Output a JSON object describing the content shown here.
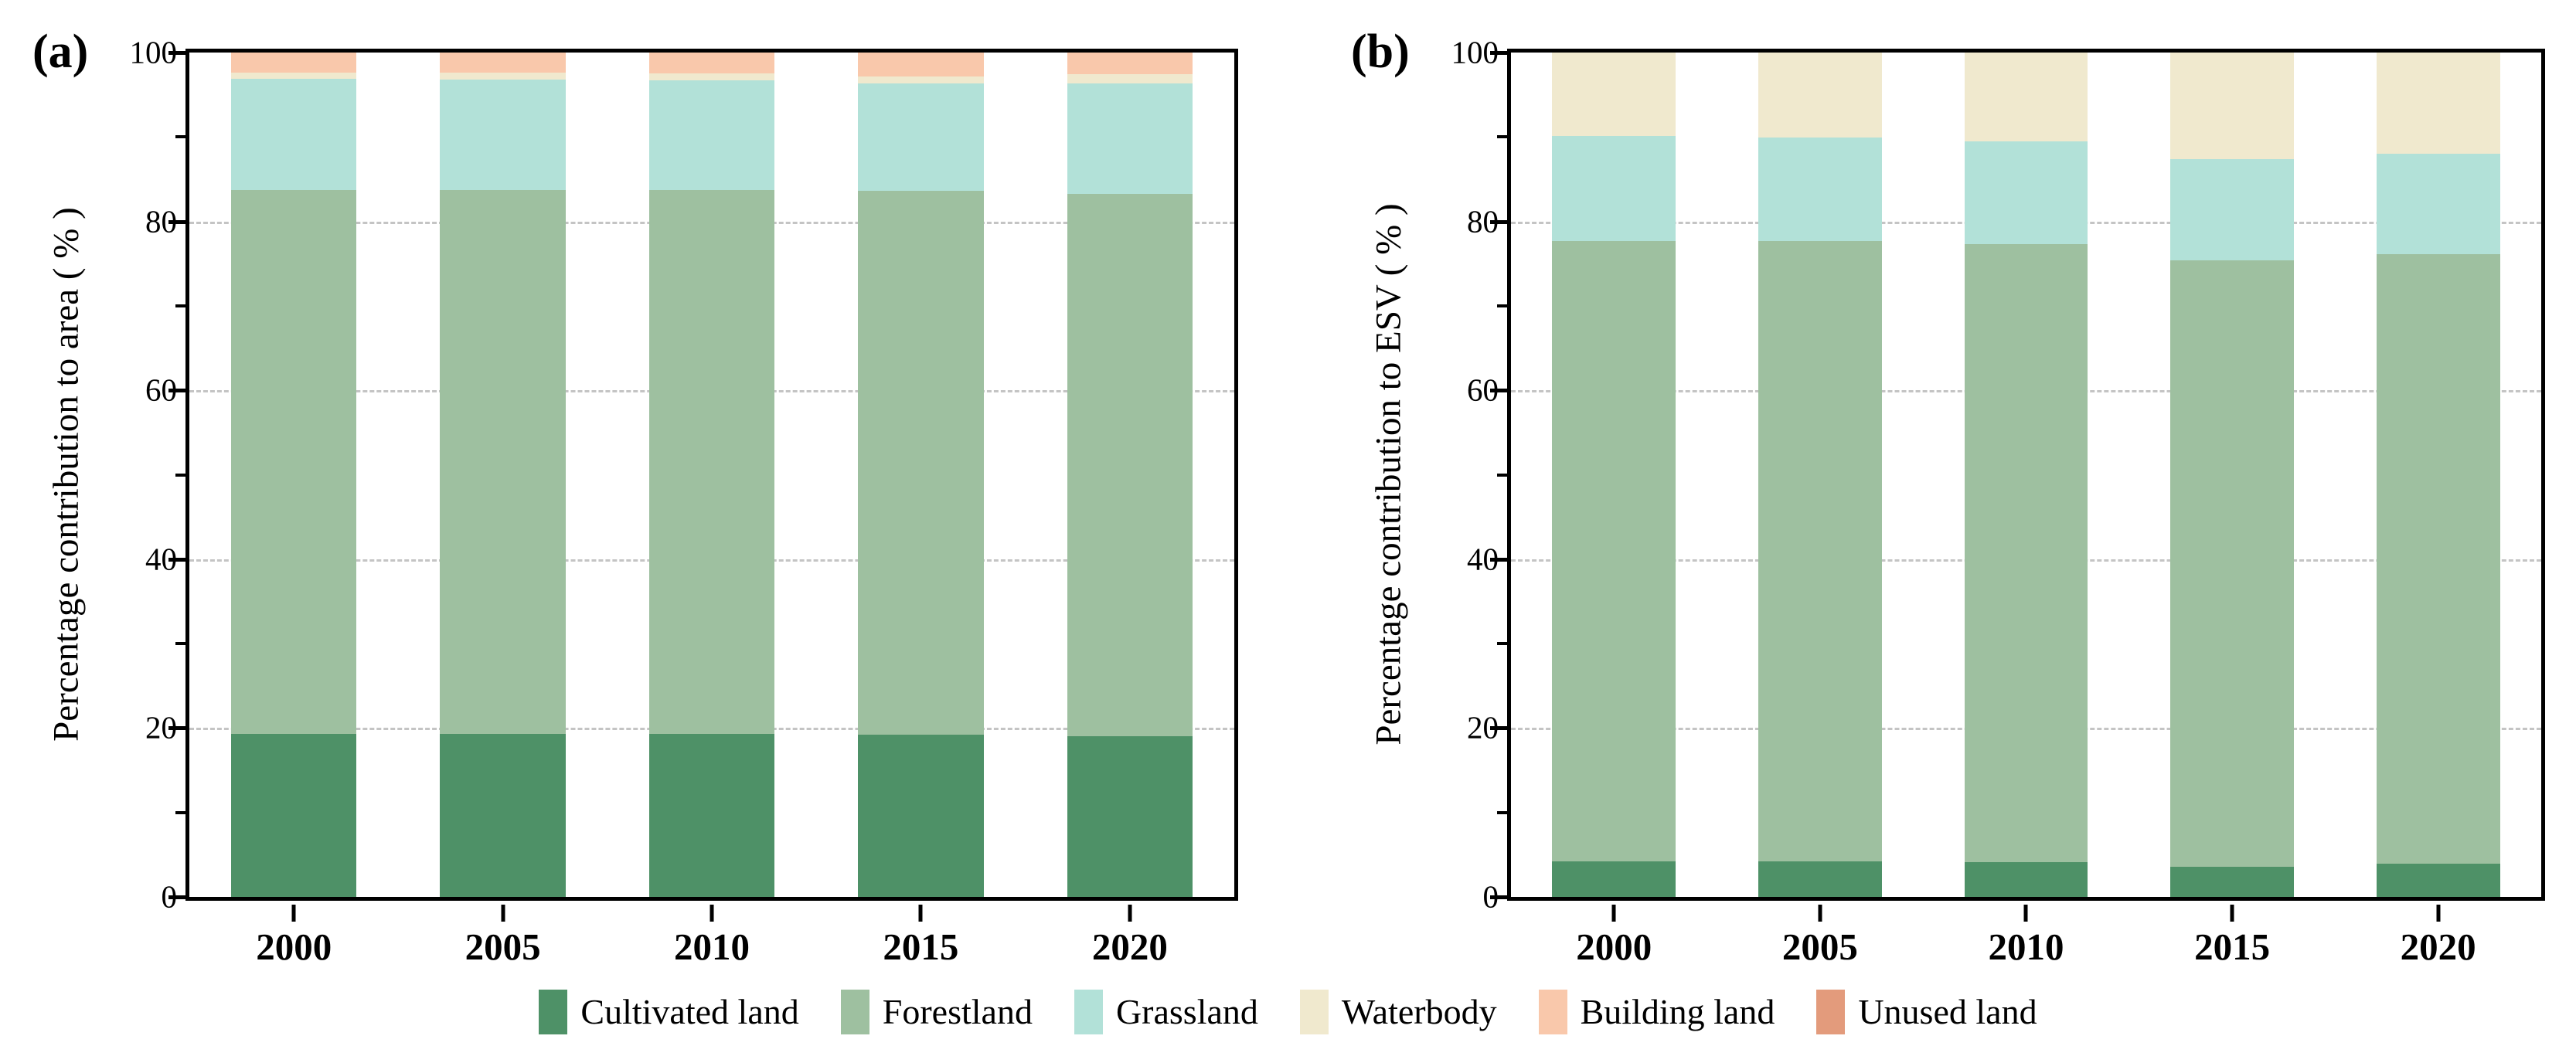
{
  "figure": {
    "background": "#ffffff"
  },
  "legend": {
    "position": "bottom-center",
    "items": [
      {
        "label": "Cultivated land",
        "color": "#4e9167"
      },
      {
        "label": "Forestland",
        "color": "#9ec0a0"
      },
      {
        "label": "Grassland",
        "color": "#b2e1d8"
      },
      {
        "label": "Waterbody",
        "color": "#f0e9ce"
      },
      {
        "label": "Building land",
        "color": "#f9c8ab"
      },
      {
        "label": "Unused land",
        "color": "#e39b7c"
      }
    ]
  },
  "chart_data": [
    {
      "type": "bar",
      "stacked": true,
      "panel_label": "(a)",
      "ylabel": "Percentage contribution to area ( % )",
      "xlabel": "",
      "categories": [
        "2000",
        "2005",
        "2010",
        "2015",
        "2020"
      ],
      "series": [
        {
          "name": "Cultivated land",
          "color": "#4e9167",
          "values": [
            19.3,
            19.3,
            19.3,
            19.2,
            19.0
          ]
        },
        {
          "name": "Forestland",
          "color": "#9ec0a0",
          "values": [
            64.4,
            64.4,
            64.4,
            64.4,
            64.3
          ]
        },
        {
          "name": "Grassland",
          "color": "#b2e1d8",
          "values": [
            13.2,
            13.1,
            13.0,
            12.7,
            13.0
          ]
        },
        {
          "name": "Waterbody",
          "color": "#f0e9ce",
          "values": [
            0.7,
            0.8,
            0.8,
            0.9,
            1.1
          ]
        },
        {
          "name": "Building land",
          "color": "#f9c8ab",
          "values": [
            2.4,
            2.4,
            2.5,
            2.8,
            2.6
          ]
        },
        {
          "name": "Unused land",
          "color": "#e39b7c",
          "values": [
            0.0,
            0.0,
            0.0,
            0.0,
            0.0
          ]
        }
      ],
      "ylim": [
        0,
        100
      ],
      "yticks": [
        0,
        20,
        40,
        60,
        80,
        100
      ],
      "minor_yticks": [
        10,
        30,
        50,
        70,
        90
      ],
      "grid": "horizontal dashed at major ticks, behind bars",
      "bar_width_fraction": 0.6
    },
    {
      "type": "bar",
      "stacked": true,
      "panel_label": "(b)",
      "ylabel": "Percentage contribution to ESV ( % )",
      "xlabel": "",
      "categories": [
        "2000",
        "2005",
        "2010",
        "2015",
        "2020"
      ],
      "series": [
        {
          "name": "Cultivated land",
          "color": "#4e9167",
          "values": [
            4.2,
            4.2,
            4.1,
            3.6,
            3.9
          ]
        },
        {
          "name": "Forestland",
          "color": "#9ec0a0",
          "values": [
            73.5,
            73.5,
            73.2,
            71.8,
            72.2
          ]
        },
        {
          "name": "Grassland",
          "color": "#b2e1d8",
          "values": [
            12.4,
            12.2,
            12.2,
            12.0,
            11.9
          ]
        },
        {
          "name": "Waterbody",
          "color": "#f0e9ce",
          "values": [
            9.9,
            10.1,
            10.5,
            12.6,
            12.0
          ]
        },
        {
          "name": "Building land",
          "color": "#f9c8ab",
          "values": [
            0.0,
            0.0,
            0.0,
            0.0,
            0.0
          ]
        },
        {
          "name": "Unused land",
          "color": "#e39b7c",
          "values": [
            0.0,
            0.0,
            0.0,
            0.0,
            0.0
          ]
        }
      ],
      "ylim": [
        0,
        100
      ],
      "yticks": [
        0,
        20,
        40,
        60,
        80,
        100
      ],
      "minor_yticks": [
        10,
        30,
        50,
        70,
        90
      ],
      "grid": "horizontal dashed at major ticks, behind bars",
      "bar_width_fraction": 0.6
    }
  ]
}
